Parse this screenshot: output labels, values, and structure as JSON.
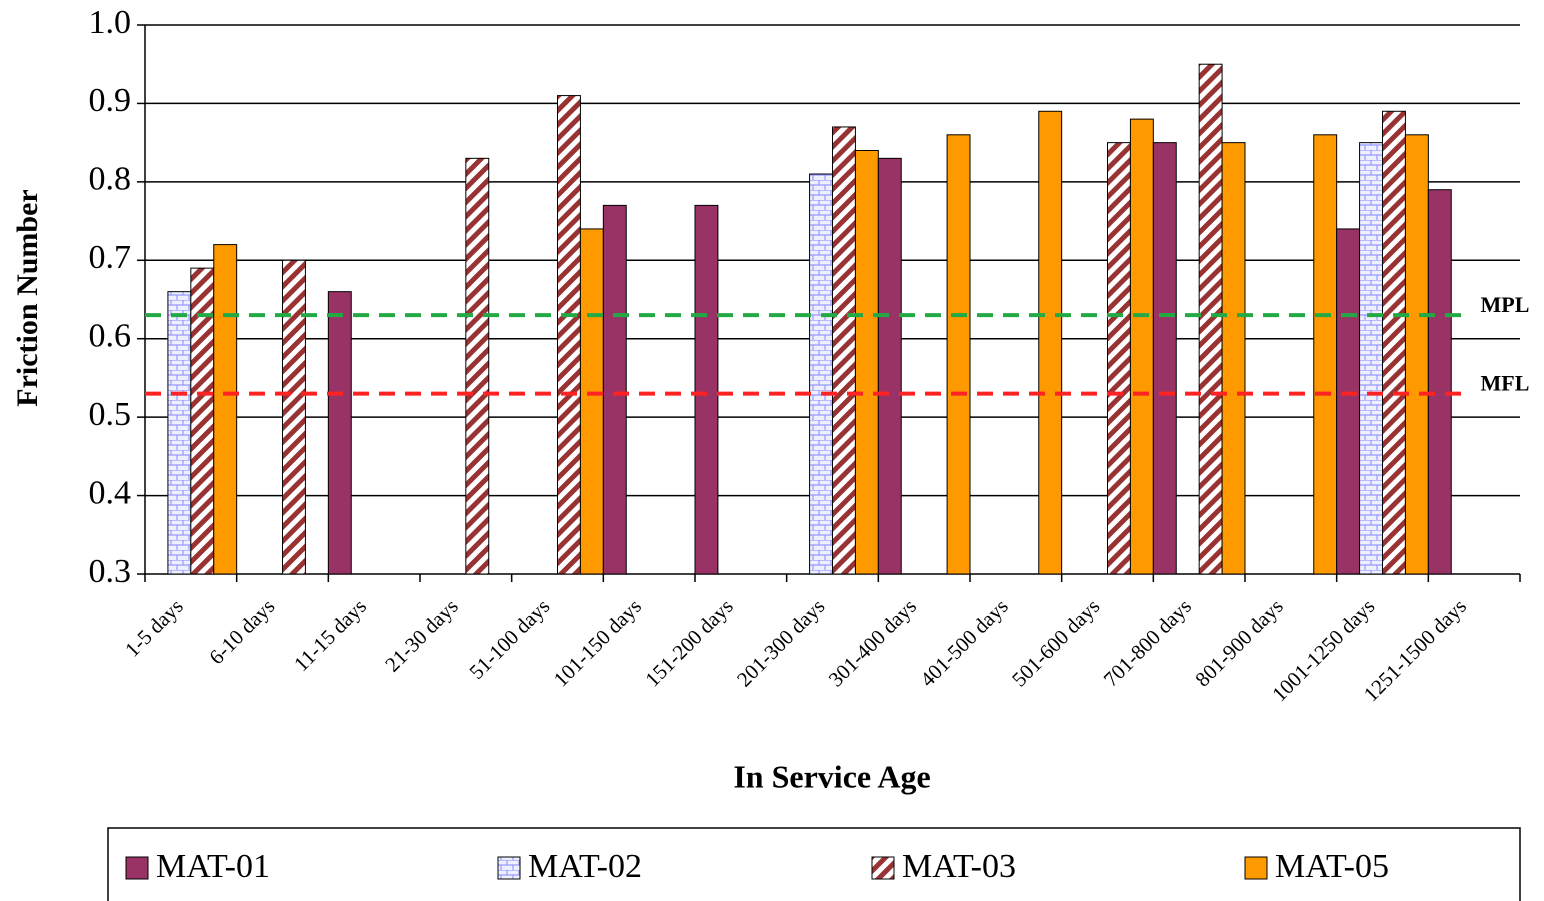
{
  "chart_data": {
    "type": "bar",
    "y_label": "Friction Number",
    "x_label": "In Service Age",
    "categories": [
      "1-5 days",
      "6-10 days",
      "11-15 days",
      "21-30 days",
      "51-100 days",
      "101-150 days",
      "151-200 days",
      "201-300 days",
      "301-400 days",
      "401-500 days",
      "501-600 days",
      "701-800 days",
      "801-900 days",
      "1001-1250 days",
      "1251-1500 days"
    ],
    "series": [
      {
        "name": "MAT-01",
        "color": "#993366",
        "pattern": "solid",
        "values": [
          null,
          null,
          0.66,
          null,
          null,
          0.77,
          0.77,
          null,
          0.83,
          null,
          null,
          0.85,
          null,
          0.74,
          0.79
        ]
      },
      {
        "name": "MAT-02",
        "color": "#9999ff",
        "pattern": "brick",
        "values": [
          0.66,
          null,
          null,
          null,
          null,
          null,
          null,
          0.81,
          null,
          null,
          null,
          null,
          null,
          0.85,
          null
        ]
      },
      {
        "name": "MAT-03",
        "color": "#993333",
        "pattern": "diagonal",
        "values": [
          0.69,
          0.7,
          null,
          0.83,
          0.91,
          null,
          null,
          0.87,
          null,
          null,
          0.85,
          0.95,
          null,
          0.89,
          null
        ]
      },
      {
        "name": "MAT-05",
        "color": "#ff9900",
        "pattern": "solid",
        "values": [
          0.72,
          null,
          null,
          null,
          0.74,
          null,
          null,
          0.84,
          0.86,
          0.89,
          0.88,
          0.85,
          0.86,
          0.86,
          null
        ]
      }
    ],
    "reference_lines": [
      {
        "label": "MPL",
        "value": 0.63,
        "color": "#22aa44"
      },
      {
        "label": "MFL",
        "value": 0.53,
        "color": "#ff2222"
      }
    ],
    "ylim": [
      0.3,
      1.0
    ],
    "yticks": [
      0.3,
      0.4,
      0.5,
      0.6,
      0.7,
      0.8,
      0.9,
      {
        "value": 1.0,
        "label": "1.0"
      }
    ],
    "grid": true,
    "legend": "bottom"
  }
}
